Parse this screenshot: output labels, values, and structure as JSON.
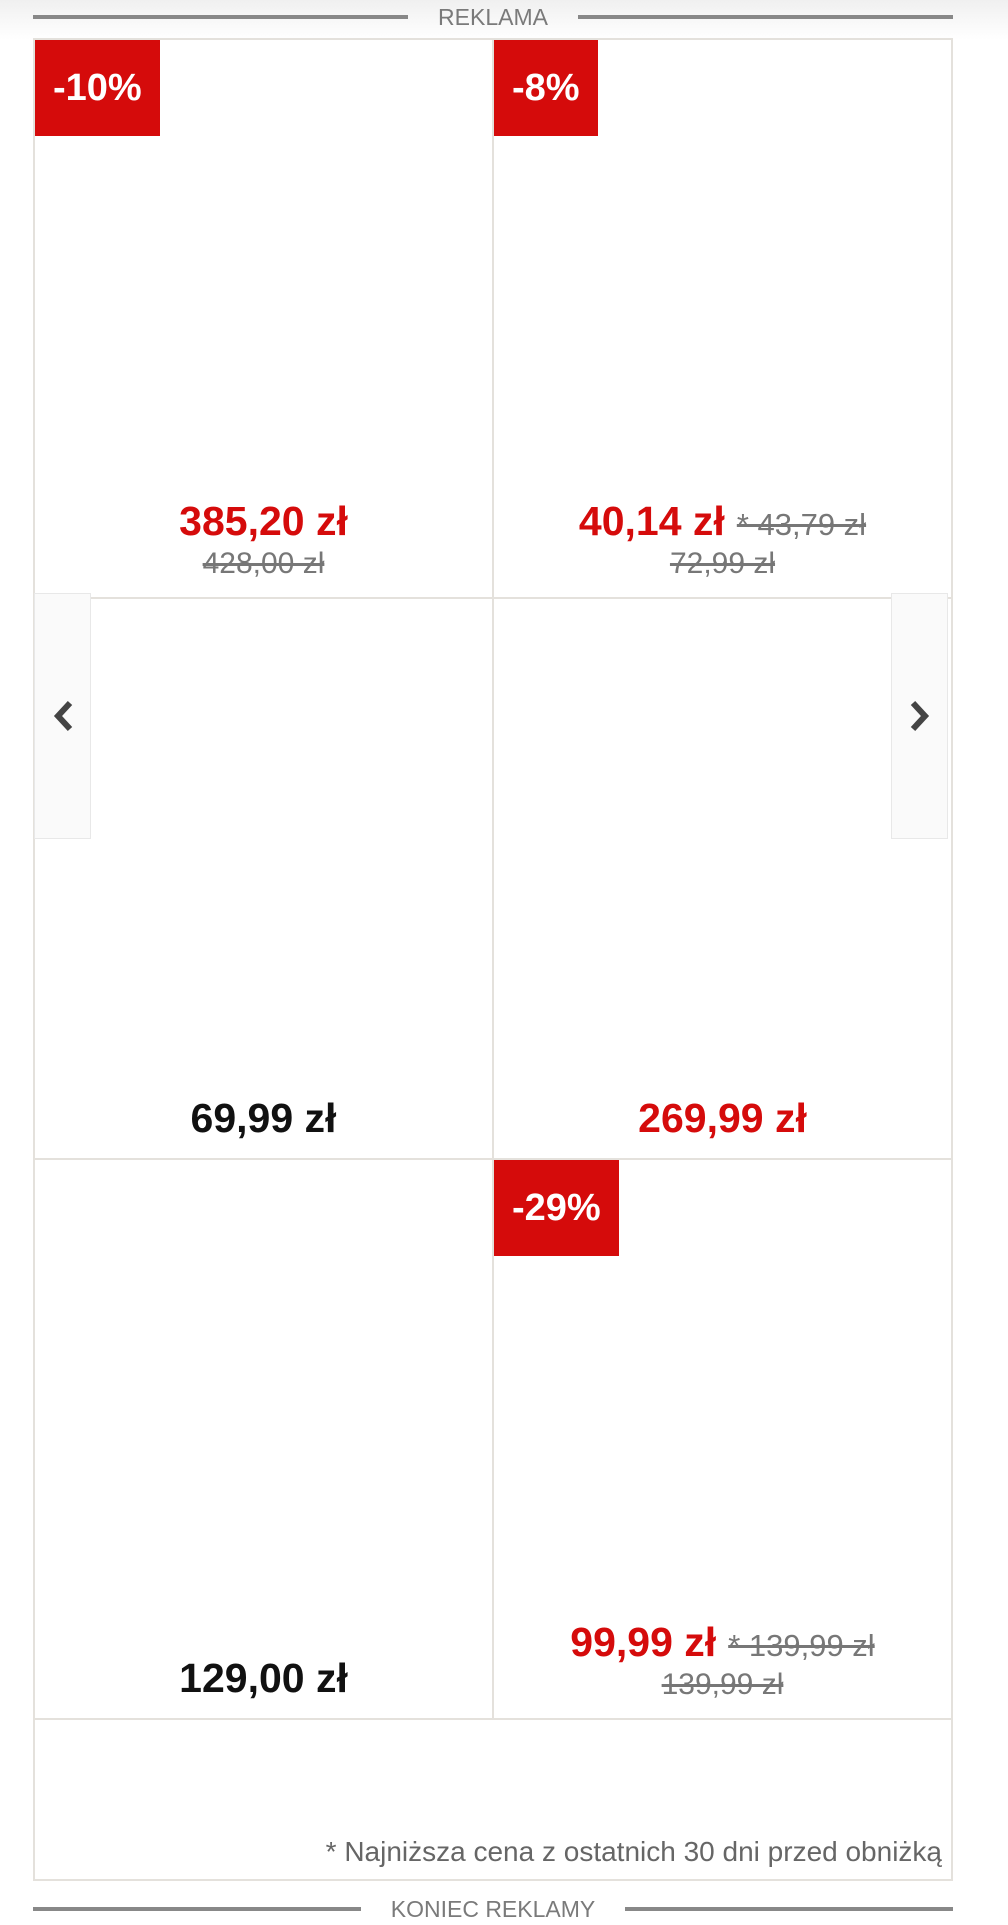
{
  "header_label": "REKLAMA",
  "footer_label": "KONIEC REKLAMY",
  "footnote": "* Najniższa cena z ostatnich 30 dni przed obniżką",
  "colors": {
    "accent": "#d50b0b",
    "border": "#e4e1dc",
    "muted": "#777777"
  },
  "nav": {
    "prev_icon": "chevron-left-icon",
    "next_icon": "chevron-right-icon"
  },
  "products": [
    {
      "badge": "-10%",
      "price": "385,20 zł",
      "price_color": "red",
      "lowest": "",
      "old_price": "428,00 zł"
    },
    {
      "badge": "-8%",
      "price": "40,14 zł",
      "price_color": "red",
      "lowest": "* 43,79 zł",
      "old_price": "72,99 zł"
    },
    {
      "badge": "",
      "price": "69,99 zł",
      "price_color": "black",
      "lowest": "",
      "old_price": ""
    },
    {
      "badge": "",
      "price": "269,99 zł",
      "price_color": "red",
      "lowest": "",
      "old_price": ""
    },
    {
      "badge": "",
      "price": "129,00 zł",
      "price_color": "black",
      "lowest": "",
      "old_price": ""
    },
    {
      "badge": "-29%",
      "price": "99,99 zł",
      "price_color": "red",
      "lowest": "* 139,99 zł",
      "old_price": "139,99 zł"
    }
  ]
}
